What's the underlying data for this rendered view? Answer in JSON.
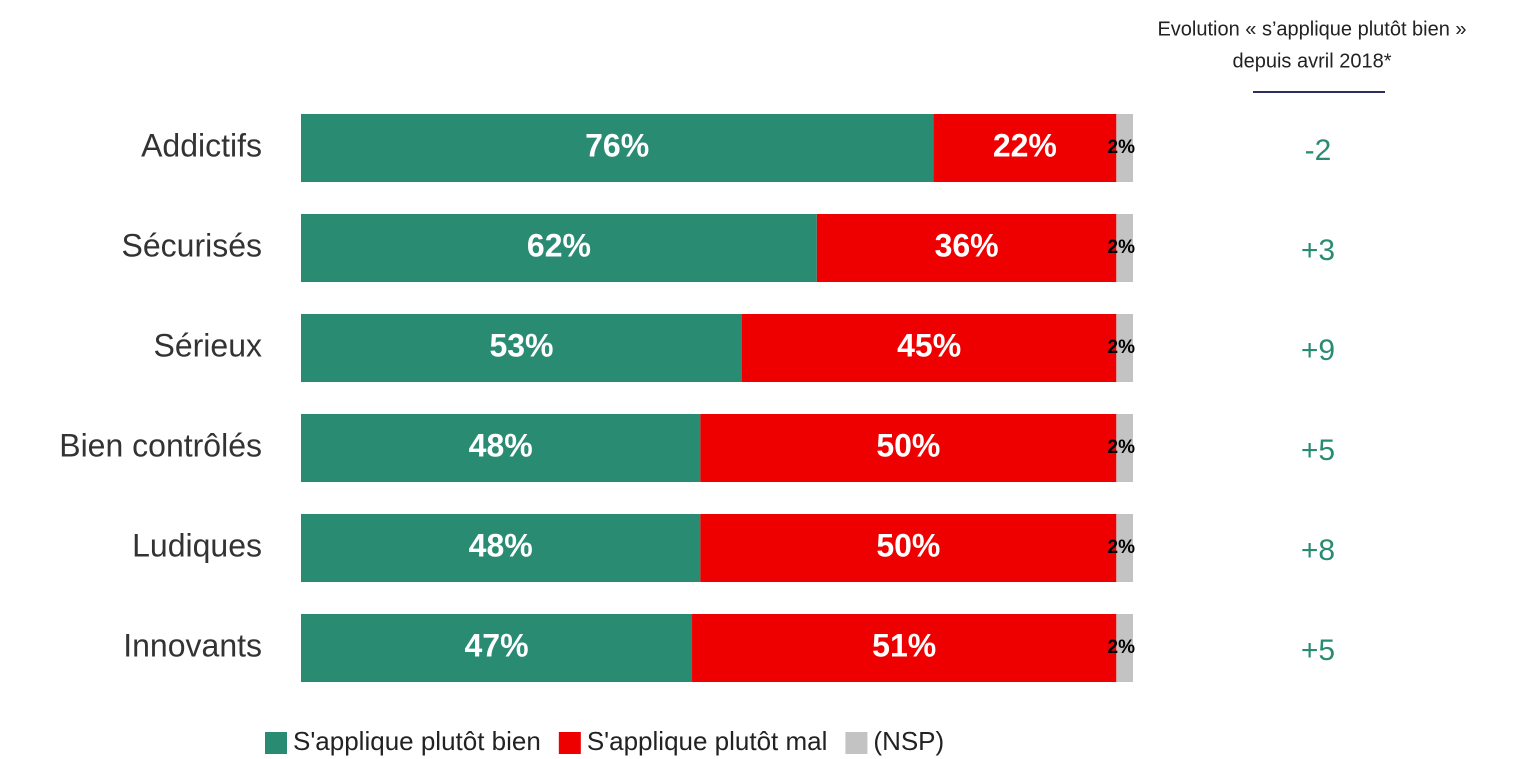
{
  "chart_data": {
    "type": "stacked-bar-horizontal",
    "categories": [
      "Addictifs",
      "Sécurisés",
      "Sérieux",
      "Bien contrôlés",
      "Ludiques",
      "Innovants"
    ],
    "xlim": [
      0,
      100
    ],
    "series": [
      {
        "name": "S'applique plutôt bien",
        "color": "#2a8b73",
        "values": [
          76,
          62,
          53,
          48,
          48,
          47
        ],
        "value_labels": [
          "76%",
          "62%",
          "53%",
          "48%",
          "48%",
          "47%"
        ]
      },
      {
        "name": "S'applique plutôt mal",
        "color": "#ee0000",
        "values": [
          22,
          36,
          45,
          50,
          50,
          51
        ],
        "value_labels": [
          "22%",
          "36%",
          "45%",
          "50%",
          "50%",
          "51%"
        ]
      },
      {
        "name": "(NSP)",
        "color": "#c3c3c3",
        "values": [
          2,
          2,
          2,
          2,
          2,
          2
        ],
        "value_labels": [
          "2%",
          "2%",
          "2%",
          "2%",
          "2%",
          "2%"
        ]
      }
    ],
    "evolution": {
      "title": [
        "Evolution « s’applique plutôt bien »",
        "depuis avril 2018*"
      ],
      "values": [
        -2,
        3,
        9,
        5,
        8,
        5
      ],
      "value_labels": [
        "-2",
        "+3",
        "+9",
        "+5",
        "+8",
        "+5"
      ],
      "color": "#2a8b73"
    }
  }
}
